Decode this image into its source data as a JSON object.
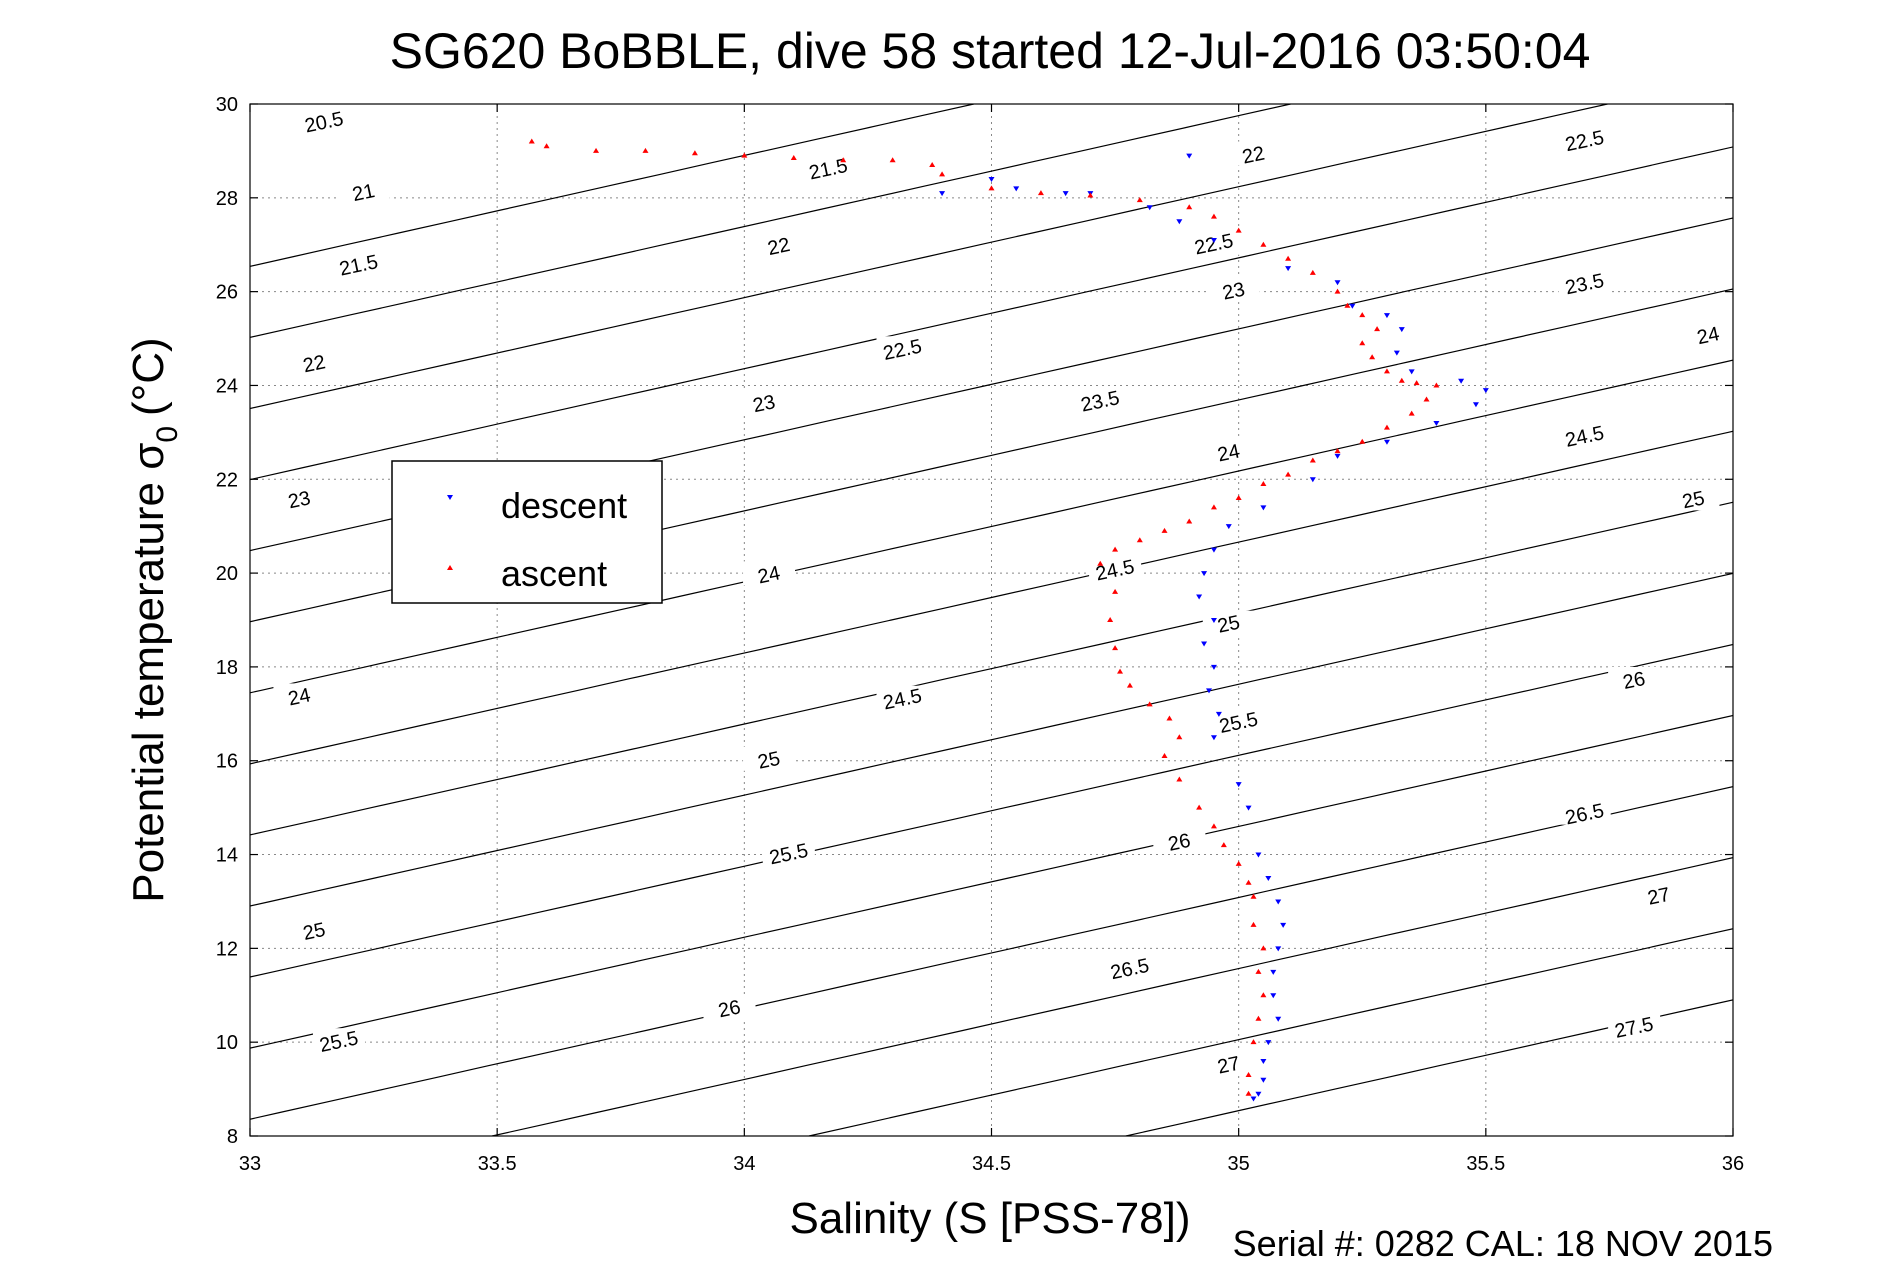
{
  "chart_data": {
    "type": "scatter",
    "title": "SG620 BoBBLE, dive 58 started 12-Jul-2016 03:50:04",
    "xlabel": "Salinity (S [PSS-78])",
    "ylabel_main": "Potential temperature σ",
    "ylabel_sub": "0",
    "ylabel_unit": "(°C)",
    "xlim": [
      33,
      36
    ],
    "ylim": [
      8,
      30
    ],
    "xticks": [
      33,
      33.5,
      34,
      34.5,
      35,
      35.5,
      36
    ],
    "xtick_labels": [
      "33",
      "33.5",
      "34",
      "34.5",
      "35",
      "35.5",
      "36"
    ],
    "yticks": [
      8,
      10,
      12,
      14,
      16,
      18,
      20,
      22,
      24,
      26,
      28,
      30
    ],
    "ytick_labels": [
      "8",
      "10",
      "12",
      "14",
      "16",
      "18",
      "20",
      "22",
      "24",
      "26",
      "28",
      "30"
    ],
    "grid": true,
    "legend_position": "center-left",
    "footer": "Serial #: 0282  CAL: 18 NOV 2015",
    "series": [
      {
        "name": "descent",
        "color": "#0000ff",
        "marker": "triangle-down",
        "x": [
          34.9,
          34.4,
          34.5,
          34.55,
          34.65,
          34.7,
          34.82,
          34.88,
          34.95,
          35.1,
          35.2,
          35.23,
          35.3,
          35.33,
          35.32,
          35.35,
          35.45,
          35.5,
          35.48,
          35.4,
          35.3,
          35.2,
          35.15,
          35.05,
          34.98,
          34.95,
          34.93,
          34.92,
          34.95,
          34.93,
          34.95,
          34.94,
          34.96,
          34.95,
          35.0,
          35.02,
          35.04,
          35.06,
          35.08,
          35.09,
          35.08,
          35.07,
          35.07,
          35.08,
          35.06,
          35.05,
          35.05,
          35.04,
          35.03
        ],
        "y": [
          28.9,
          28.1,
          28.4,
          28.2,
          28.1,
          28.1,
          27.8,
          27.5,
          27.1,
          26.5,
          26.2,
          25.7,
          25.5,
          25.2,
          24.7,
          24.3,
          24.1,
          23.9,
          23.6,
          23.2,
          22.8,
          22.5,
          22.0,
          21.4,
          21.0,
          20.5,
          20.0,
          19.5,
          19.0,
          18.5,
          18.0,
          17.5,
          17.0,
          16.5,
          15.5,
          15.0,
          14.0,
          13.5,
          13.0,
          12.5,
          12.0,
          11.5,
          11.0,
          10.5,
          10.0,
          9.6,
          9.2,
          8.9,
          8.8
        ]
      },
      {
        "name": "ascent",
        "color": "#ff0000",
        "marker": "triangle-up",
        "x": [
          33.57,
          33.6,
          33.7,
          33.8,
          33.9,
          34.0,
          34.1,
          34.2,
          34.3,
          34.38,
          34.4,
          34.5,
          34.6,
          34.7,
          34.8,
          34.9,
          34.95,
          35.0,
          35.05,
          35.1,
          35.15,
          35.2,
          35.22,
          35.25,
          35.28,
          35.25,
          35.27,
          35.3,
          35.33,
          35.36,
          35.4,
          35.38,
          35.35,
          35.3,
          35.25,
          35.2,
          35.15,
          35.1,
          35.05,
          35.0,
          34.95,
          34.9,
          34.85,
          34.8,
          34.75,
          34.72,
          34.75,
          34.74,
          34.75,
          34.76,
          34.78,
          34.82,
          34.86,
          34.88,
          34.85,
          34.88,
          34.92,
          34.95,
          34.97,
          35.0,
          35.02,
          35.03,
          35.03,
          35.05,
          35.04,
          35.05,
          35.04,
          35.03,
          35.02,
          35.02
        ],
        "y": [
          29.2,
          29.1,
          29.0,
          29.0,
          28.95,
          28.9,
          28.85,
          28.8,
          28.8,
          28.7,
          28.5,
          28.2,
          28.1,
          28.05,
          27.95,
          27.8,
          27.6,
          27.3,
          27.0,
          26.7,
          26.4,
          26.0,
          25.7,
          25.5,
          25.2,
          24.9,
          24.6,
          24.3,
          24.1,
          24.05,
          24.0,
          23.7,
          23.4,
          23.1,
          22.8,
          22.6,
          22.4,
          22.1,
          21.9,
          21.6,
          21.4,
          21.1,
          20.9,
          20.7,
          20.5,
          20.2,
          19.6,
          19.0,
          18.4,
          17.9,
          17.6,
          17.2,
          16.9,
          16.5,
          16.1,
          15.6,
          15.0,
          14.6,
          14.2,
          13.8,
          13.4,
          13.1,
          12.5,
          12.0,
          11.5,
          11.0,
          10.5,
          10.0,
          9.3,
          8.9
        ]
      }
    ],
    "density_contours": [
      {
        "label": "20.5",
        "label_at": [
          33.15,
          29.6
        ]
      },
      {
        "label": "21",
        "label_at": [
          33.23,
          28.1
        ]
      },
      {
        "label": "21.5",
        "label_at": [
          33.22,
          26.55
        ]
      },
      {
        "label": "21.5",
        "label_at": [
          34.17,
          28.6
        ]
      },
      {
        "label": "22",
        "label_at": [
          33.13,
          24.45
        ]
      },
      {
        "label": "22",
        "label_at": [
          34.07,
          26.95
        ]
      },
      {
        "label": "22",
        "label_at": [
          35.03,
          28.9
        ]
      },
      {
        "label": "22.5",
        "label_at": [
          34.32,
          24.75
        ]
      },
      {
        "label": "22.5",
        "label_at": [
          34.95,
          27.0
        ]
      },
      {
        "label": "22.5",
        "label_at": [
          35.7,
          29.2
        ]
      },
      {
        "label": "23",
        "label_at": [
          33.1,
          21.55
        ]
      },
      {
        "label": "23",
        "label_at": [
          34.04,
          23.6
        ]
      },
      {
        "label": "23",
        "label_at": [
          34.99,
          26.0
        ]
      },
      {
        "label": "23.5",
        "label_at": [
          34.72,
          23.65
        ]
      },
      {
        "label": "23.5",
        "label_at": [
          35.7,
          26.15
        ]
      },
      {
        "label": "24",
        "label_at": [
          33.1,
          17.35
        ]
      },
      {
        "label": "24",
        "label_at": [
          34.05,
          19.95
        ]
      },
      {
        "label": "24",
        "label_at": [
          34.98,
          22.55
        ]
      },
      {
        "label": "24",
        "label_at": [
          35.95,
          25.05
        ]
      },
      {
        "label": "24.5",
        "label_at": [
          34.75,
          20.05
        ]
      },
      {
        "label": "24.5",
        "label_at": [
          34.32,
          17.3
        ]
      },
      {
        "label": "24.5",
        "label_at": [
          35.7,
          22.9
        ]
      },
      {
        "label": "25",
        "label_at": [
          33.13,
          12.35
        ]
      },
      {
        "label": "25",
        "label_at": [
          34.05,
          16.0
        ]
      },
      {
        "label": "25",
        "label_at": [
          34.98,
          18.9
        ]
      },
      {
        "label": "25",
        "label_at": [
          35.92,
          21.55
        ]
      },
      {
        "label": "25.5",
        "label_at": [
          33.18,
          10.0
        ]
      },
      {
        "label": "25.5",
        "label_at": [
          34.09,
          14.0
        ]
      },
      {
        "label": "25.5",
        "label_at": [
          35.0,
          16.8
        ]
      },
      {
        "label": "26",
        "label_at": [
          33.97,
          10.7
        ]
      },
      {
        "label": "26",
        "label_at": [
          34.88,
          14.25
        ]
      },
      {
        "label": "26",
        "label_at": [
          35.8,
          17.7
        ]
      },
      {
        "label": "26.5",
        "label_at": [
          34.78,
          11.55
        ]
      },
      {
        "label": "26.5",
        "label_at": [
          35.7,
          14.85
        ]
      },
      {
        "label": "27",
        "label_at": [
          34.98,
          9.5
        ]
      },
      {
        "label": "27",
        "label_at": [
          35.85,
          13.1
        ]
      },
      {
        "label": "27.5",
        "label_at": [
          35.8,
          10.3
        ]
      }
    ]
  }
}
